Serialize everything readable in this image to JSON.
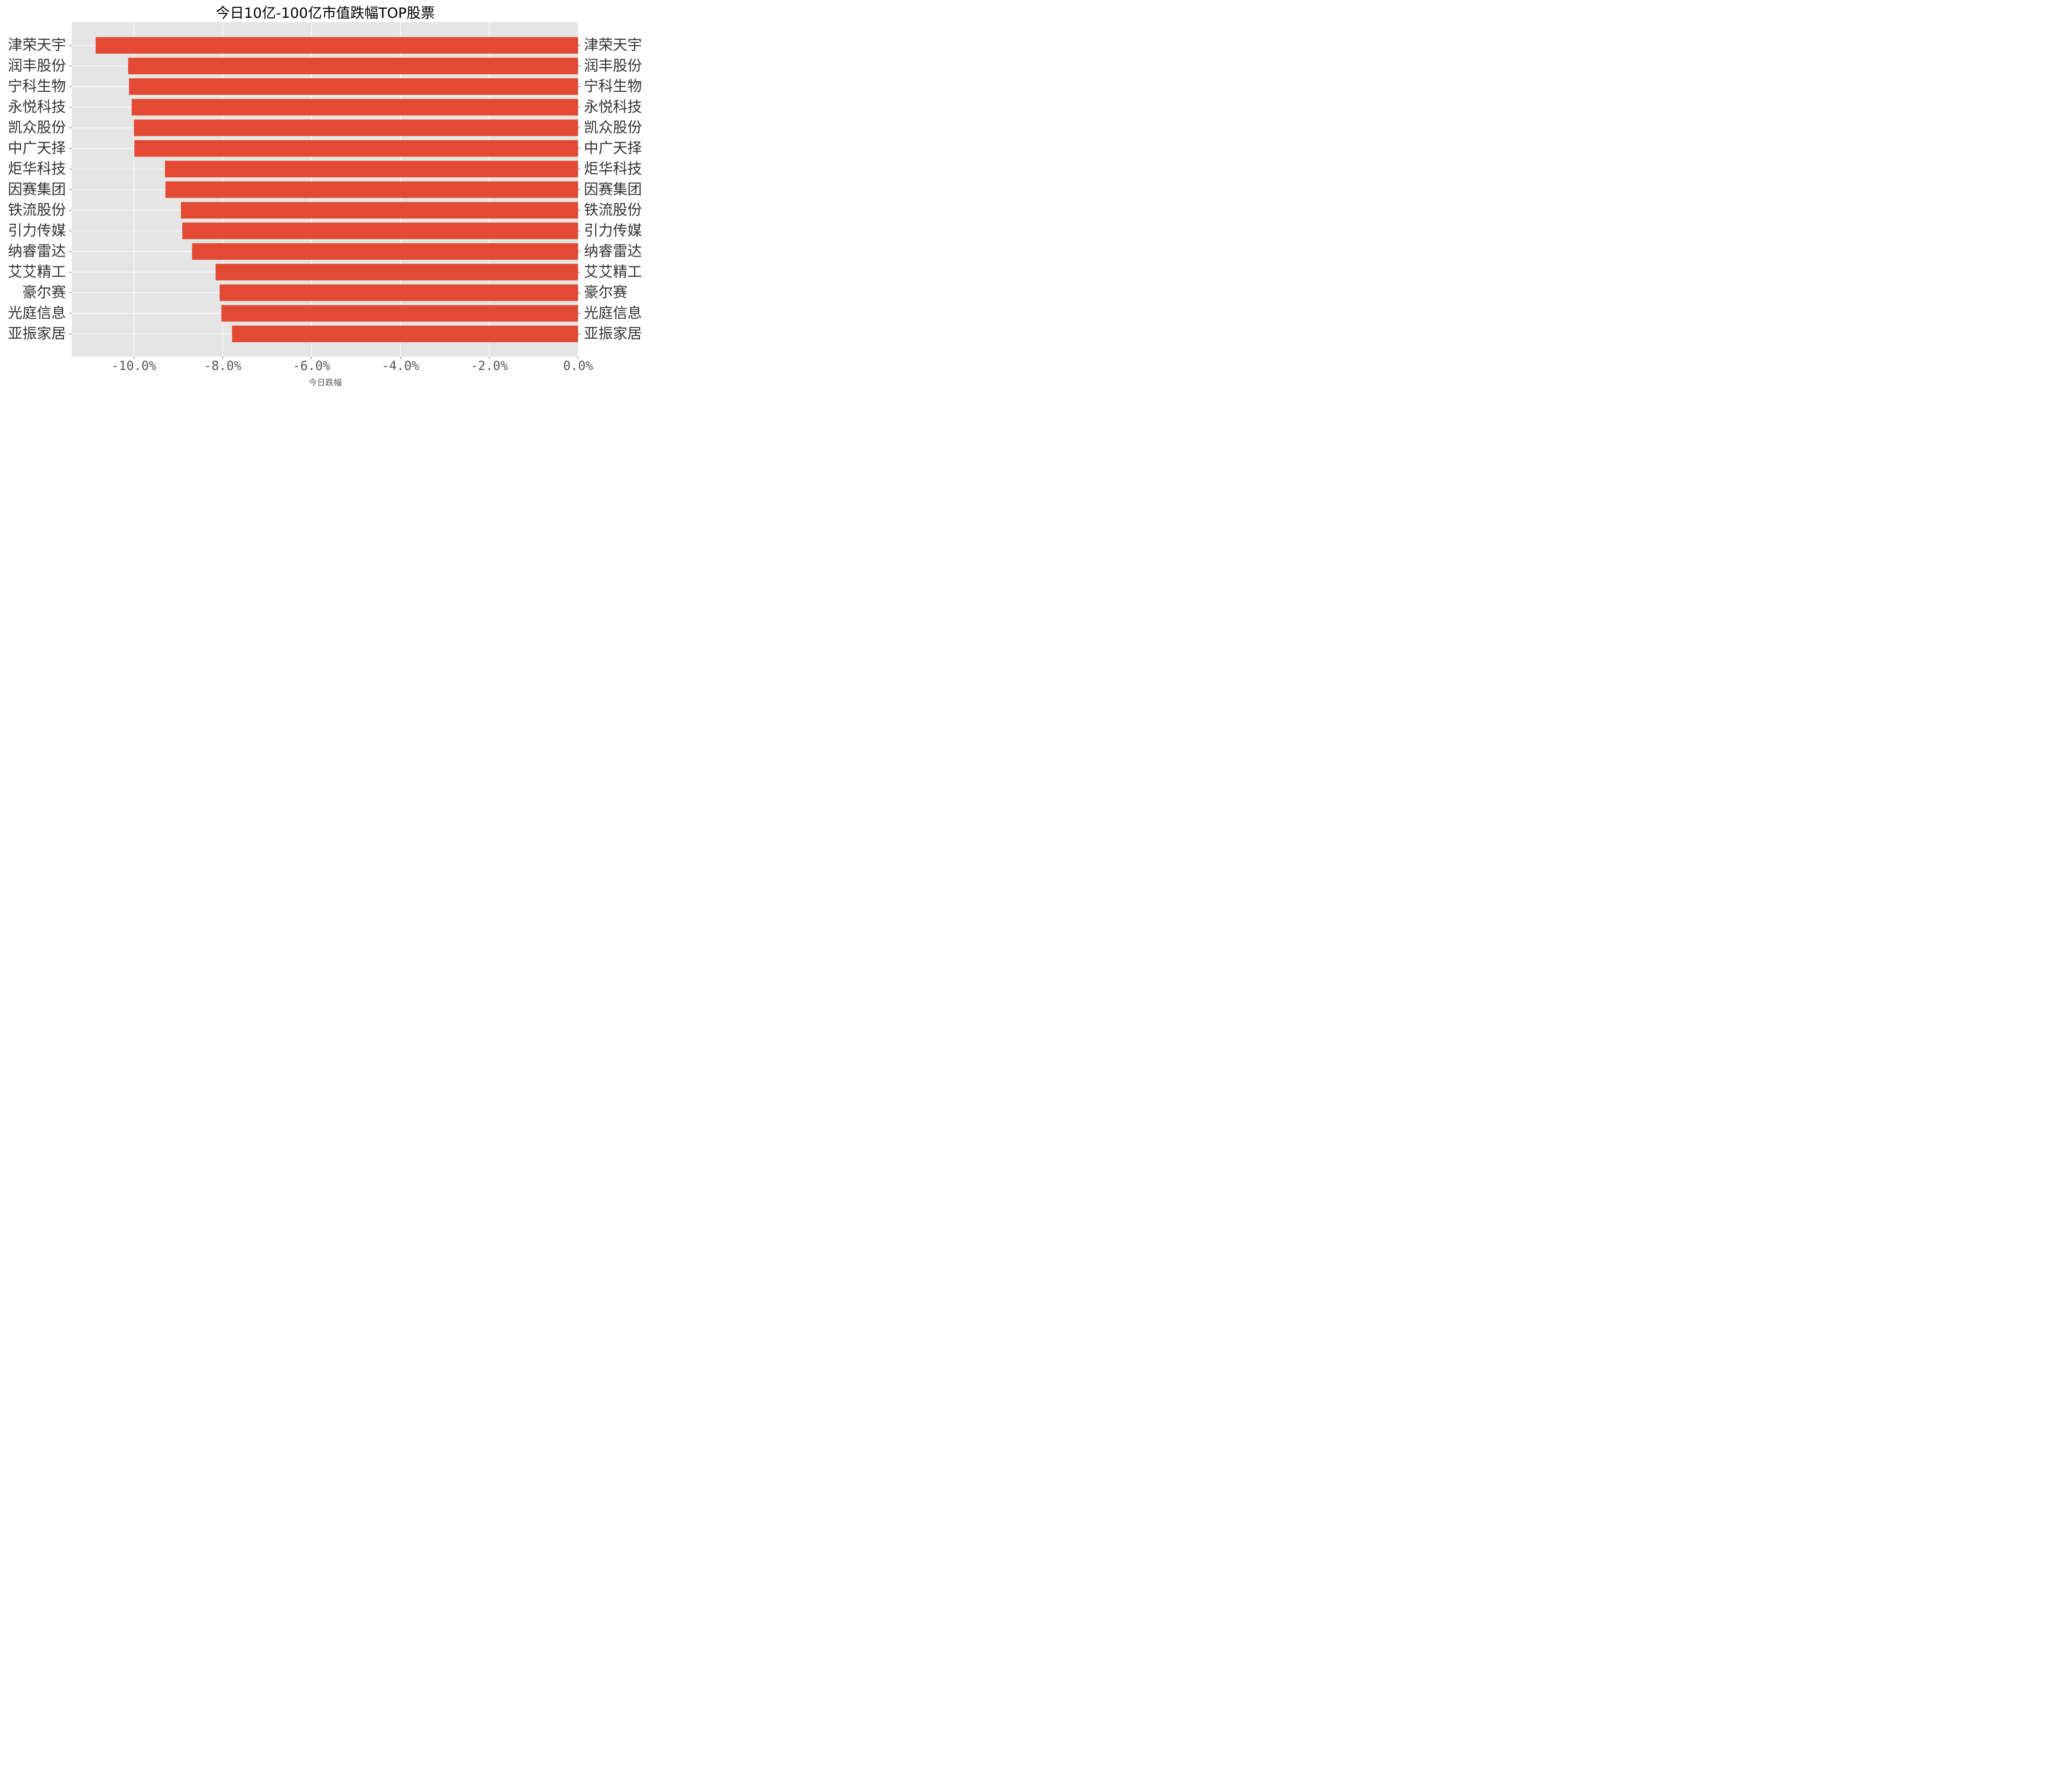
{
  "chart_data": {
    "type": "bar",
    "orientation": "horizontal",
    "title": "今日10亿-100亿市值跌幅TOP股票",
    "xlabel": "今日跌幅",
    "ylabel": "",
    "categories": [
      "津荣天宇",
      "润丰股份",
      "宁科生物",
      "永悦科技",
      "凯众股份",
      "中广天择",
      "炬华科技",
      "因赛集团",
      "铁流股份",
      "引力传媒",
      "纳睿雷达",
      "艾艾精工",
      "豪尔赛",
      "光庭信息",
      "亚振家居"
    ],
    "values": [
      -10.86,
      -10.13,
      -10.11,
      -10.05,
      -10.0,
      -9.99,
      -9.3,
      -9.29,
      -8.94,
      -8.91,
      -8.69,
      -8.16,
      -8.07,
      -8.03,
      -7.79
    ],
    "xlim": [
      -11.4,
      0
    ],
    "xticks": [
      -10,
      -8,
      -6,
      -4,
      -2,
      0
    ],
    "xtick_labels": [
      "-10.0%",
      "-8.0%",
      "-6.0%",
      "-4.0%",
      "-2.0%",
      "0.0%"
    ],
    "bar_color": "#E24A33",
    "background_color": "#E5E5E5",
    "grid_color": "#FFFFFF",
    "grid": true,
    "category_labels_both_sides": true
  }
}
